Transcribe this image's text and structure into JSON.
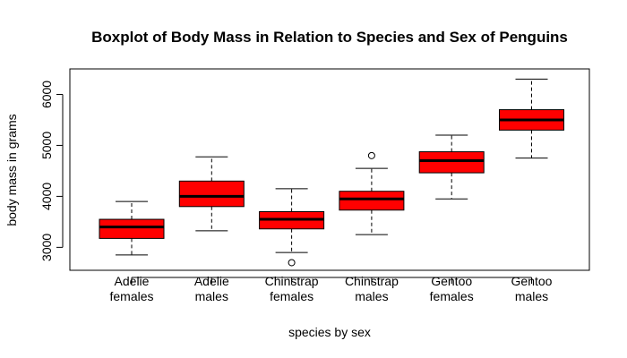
{
  "chart_data": {
    "type": "boxplot",
    "title": "Boxplot of Body Mass in Relation to Species and Sex of Penguins",
    "xlabel": "species by sex",
    "ylabel": "body mass in grams",
    "ylim": [
      2550,
      6500
    ],
    "y_ticks": [
      3000,
      4000,
      5000,
      6000
    ],
    "grid": false,
    "box_color": "#ff0000",
    "median_color": "#000000",
    "categories": [
      [
        "Adelie",
        "females"
      ],
      [
        "Adelie",
        "males"
      ],
      [
        "Chinstrap",
        "females"
      ],
      [
        "Chinstrap",
        "males"
      ],
      [
        "Gentoo",
        "females"
      ],
      [
        "Gentoo",
        "males"
      ]
    ],
    "boxes": [
      {
        "whisker_low": 2850,
        "q1": 3175,
        "median": 3400,
        "q3": 3550,
        "whisker_high": 3900,
        "outliers": []
      },
      {
        "whisker_low": 3325,
        "q1": 3800,
        "median": 4000,
        "q3": 4300,
        "whisker_high": 4775,
        "outliers": []
      },
      {
        "whisker_low": 2900,
        "q1": 3362,
        "median": 3550,
        "q3": 3700,
        "whisker_high": 4150,
        "outliers": [
          2700
        ]
      },
      {
        "whisker_low": 3250,
        "q1": 3731,
        "median": 3950,
        "q3": 4100,
        "whisker_high": 4550,
        "outliers": [
          4800
        ]
      },
      {
        "whisker_low": 3950,
        "q1": 4462,
        "median": 4700,
        "q3": 4875,
        "whisker_high": 5200,
        "outliers": []
      },
      {
        "whisker_low": 4750,
        "q1": 5300,
        "median": 5500,
        "q3": 5700,
        "whisker_high": 6300,
        "outliers": []
      }
    ]
  }
}
